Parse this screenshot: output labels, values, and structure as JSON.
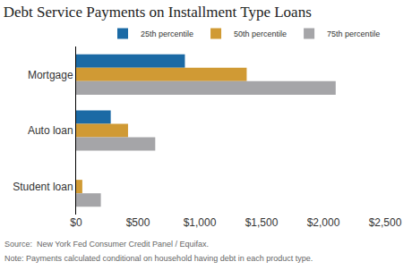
{
  "chart_data": {
    "type": "bar",
    "orientation": "horizontal",
    "title": "Debt Service Payments on Installment Type Loans",
    "categories": [
      "Mortgage",
      "Auto loan",
      "Student loan"
    ],
    "series": [
      {
        "name": "25th percentile",
        "color": "#1b6aa5",
        "values": [
          880,
          280,
          0
        ]
      },
      {
        "name": "50th percentile",
        "color": "#d09a34",
        "values": [
          1380,
          420,
          50
        ]
      },
      {
        "name": "75th percentile",
        "color": "#a5a5a8",
        "values": [
          2100,
          640,
          200
        ]
      }
    ],
    "xlim": [
      0,
      2500
    ],
    "xticks": [
      {
        "value": 0,
        "label": "$0"
      },
      {
        "value": 500,
        "label": "$500"
      },
      {
        "value": 1000,
        "label": "$1,000"
      },
      {
        "value": 1500,
        "label": "$1,500"
      },
      {
        "value": 2000,
        "label": "$2,000"
      },
      {
        "value": 2500,
        "label": "$2,500"
      }
    ],
    "grid": false,
    "legend": "top right",
    "annotations": [
      "Source:  New York Fed Consumer Credit Panel / Equifax.",
      "Note: Payments calculated conditional on household having debt in each product type."
    ]
  }
}
